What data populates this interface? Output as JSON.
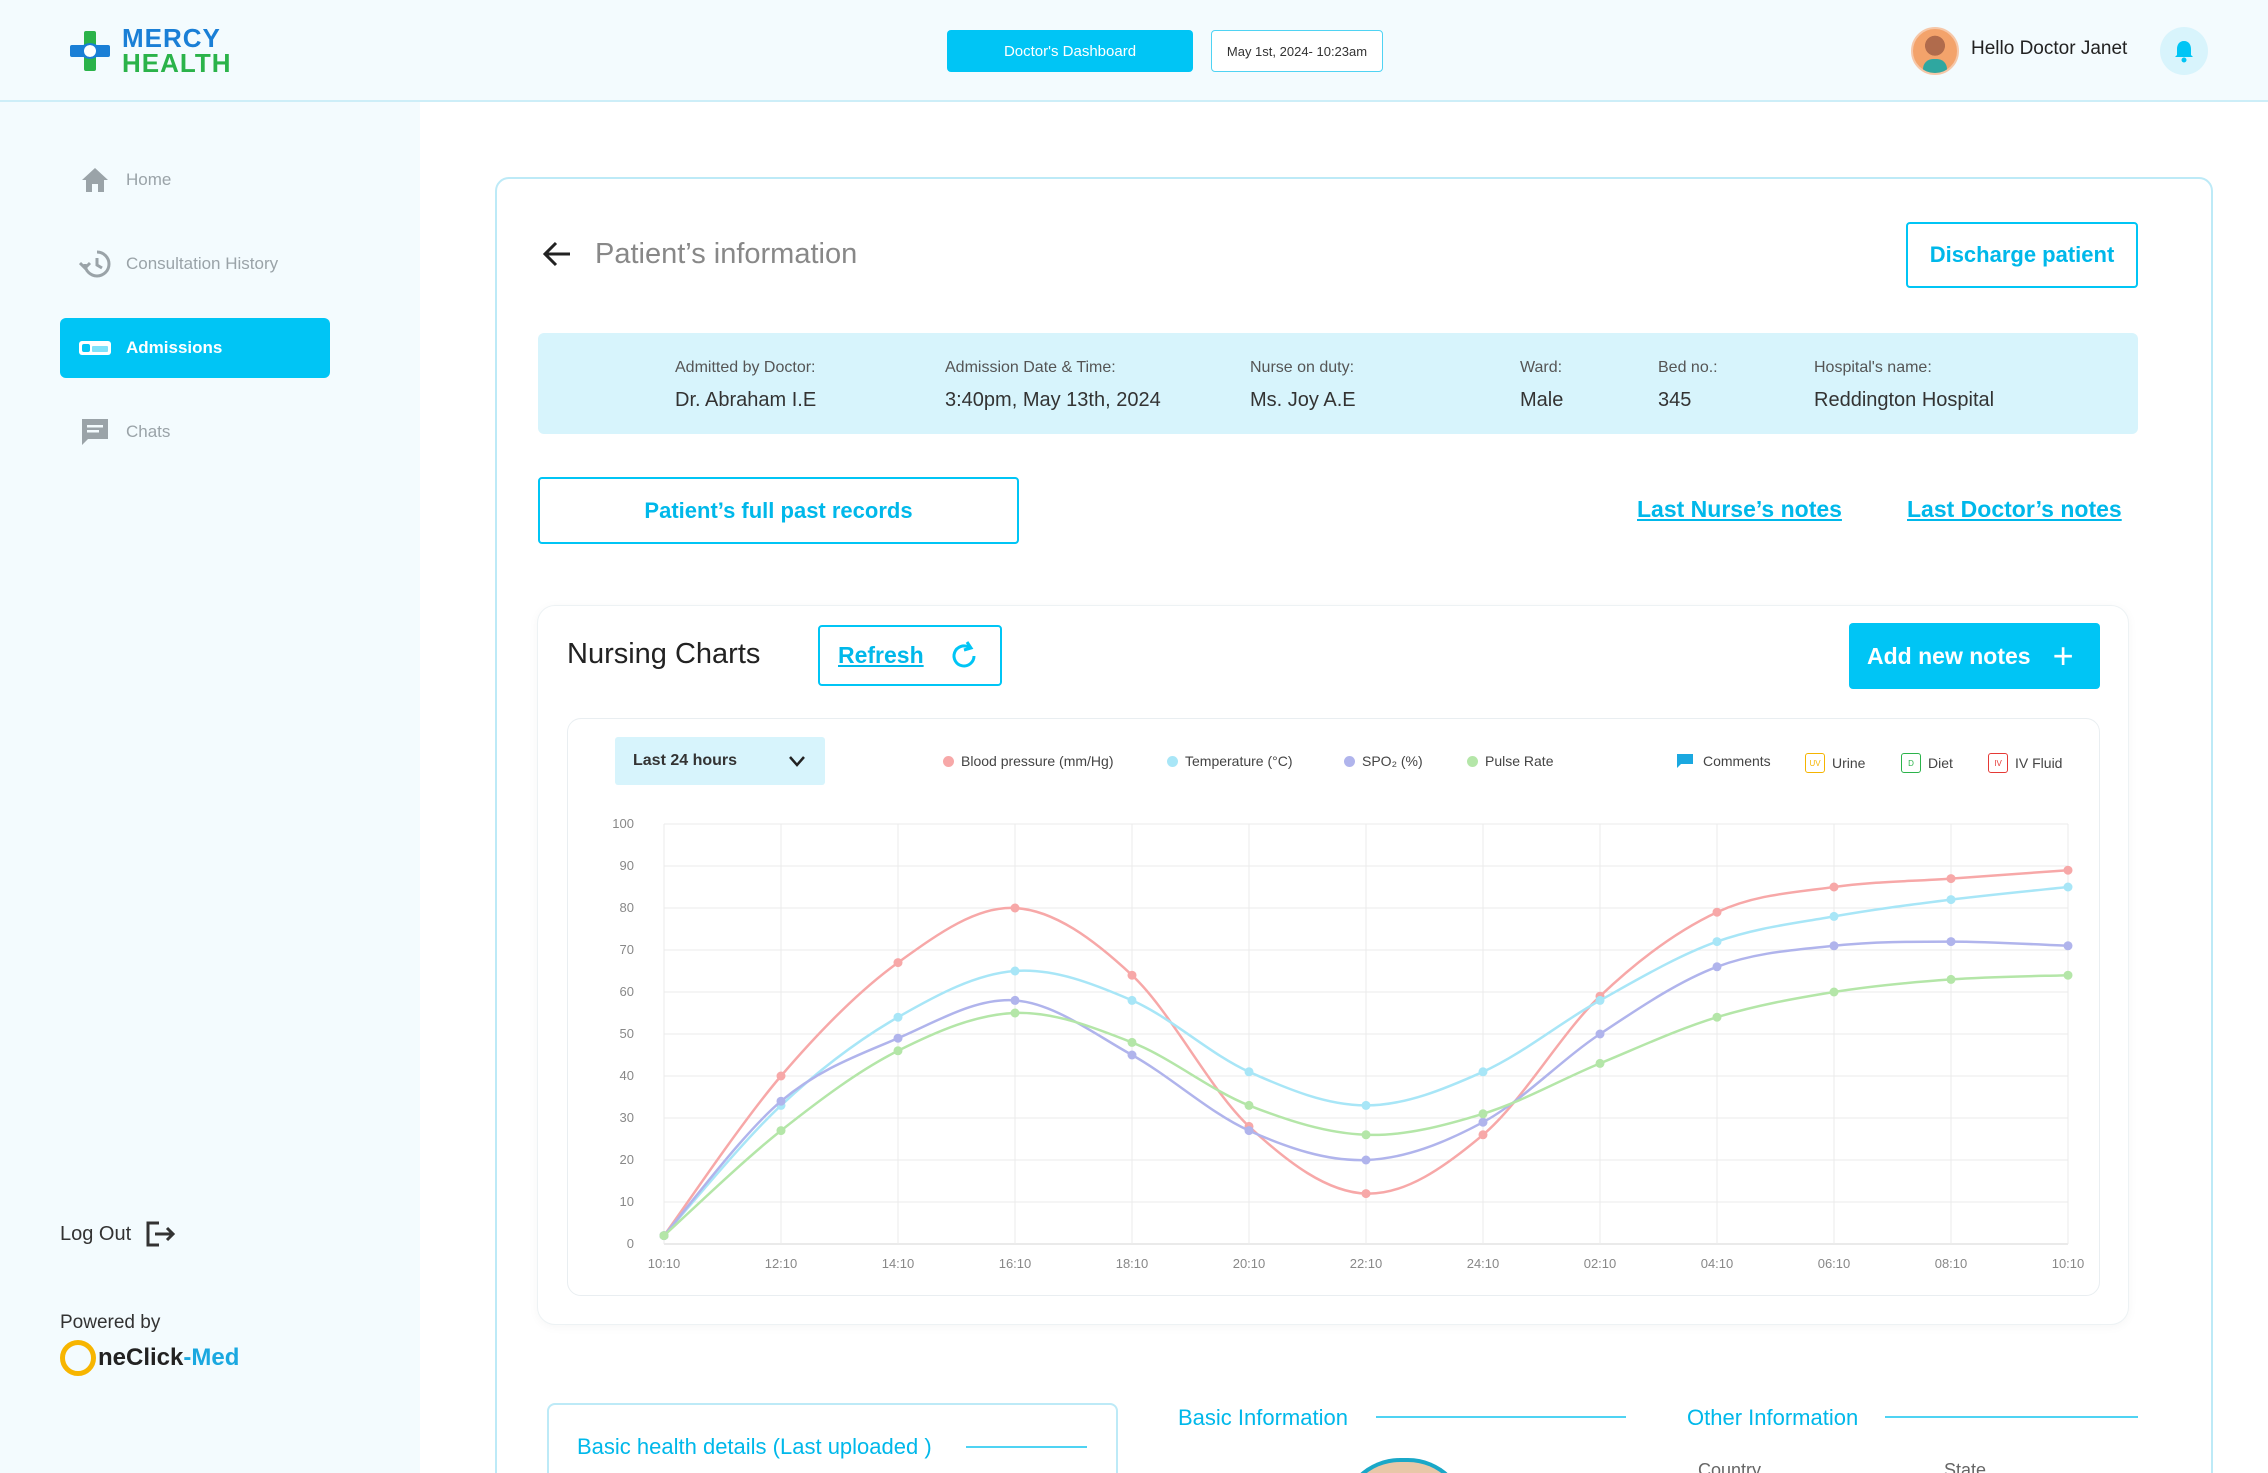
{
  "header": {
    "brand_line1": "MERCY",
    "brand_line2": "HEALTH",
    "dashboard_label": "Doctor's Dashboard",
    "datetime": "May 1st, 2024- 10:23am",
    "greeting": "Hello Doctor Janet"
  },
  "sidebar": {
    "items": [
      {
        "label": "Home",
        "icon": "home-icon",
        "active": false
      },
      {
        "label": "Consultation History",
        "icon": "history-icon",
        "active": false
      },
      {
        "label": "Admissions",
        "icon": "bed-icon",
        "active": true
      },
      {
        "label": "Chats",
        "icon": "chat-icon",
        "active": false
      }
    ],
    "logout_label": "Log Out",
    "powered_by": "Powered by",
    "powered_brand_a": "neClick",
    "powered_brand_b": "-Med"
  },
  "patient": {
    "title": "Patient’s information",
    "discharge_label": "Discharge patient",
    "info": [
      {
        "key": "Admitted by Doctor:",
        "value": "Dr. Abraham I.E"
      },
      {
        "key": "Admission Date & Time:",
        "value": "3:40pm, May 13th, 2024"
      },
      {
        "key": "Nurse on duty:",
        "value": "Ms. Joy A.E"
      },
      {
        "key": "Ward:",
        "value": "Male"
      },
      {
        "key": "Bed no.:",
        "value": "345"
      },
      {
        "key": "Hospital's name:",
        "value": "Reddington Hospital"
      }
    ],
    "past_records_label": "Patient’s full past records",
    "nurse_notes_label": "Last Nurse’s notes",
    "doctor_notes_label": "Last Doctor’s notes"
  },
  "nursing": {
    "title": "Nursing Charts",
    "refresh_label": "Refresh",
    "add_notes_label": "Add new notes",
    "range_label": "Last 24 hours",
    "legend_comments": "Comments",
    "legend_urine": "Urine",
    "legend_diet": "Diet",
    "legend_iv": "IV Fluid",
    "urine_code": "UV",
    "diet_code": "D",
    "iv_code": "IV"
  },
  "chart_data": {
    "type": "line",
    "x": [
      "10:10",
      "12:10",
      "14:10",
      "16:10",
      "18:10",
      "20:10",
      "22:10",
      "24:10",
      "02:10",
      "04:10",
      "06:10",
      "08:10",
      "10:10"
    ],
    "ylim": [
      0,
      100
    ],
    "yticks": [
      0,
      10,
      20,
      30,
      40,
      50,
      60,
      70,
      80,
      90,
      100
    ],
    "grid": true,
    "legend": "top",
    "series": [
      {
        "name": "Blood pressure (mm/Hg)",
        "color": "#f7a8a8",
        "values": [
          2,
          40,
          67,
          80,
          64,
          28,
          12,
          26,
          59,
          79,
          85,
          87,
          89
        ]
      },
      {
        "name": "Temperature (°C)",
        "color": "#a8e6f7",
        "values": [
          2,
          33,
          54,
          65,
          58,
          41,
          33,
          41,
          58,
          72,
          78,
          82,
          85
        ]
      },
      {
        "name": "SPO₂ (%)",
        "color": "#b0b4ec",
        "values": [
          2,
          34,
          49,
          58,
          45,
          27,
          20,
          29,
          50,
          66,
          71,
          72,
          71
        ]
      },
      {
        "name": "Pulse Rate",
        "color": "#b4e6a8",
        "values": [
          2,
          27,
          46,
          55,
          48,
          33,
          26,
          31,
          43,
          54,
          60,
          63,
          64
        ]
      }
    ]
  },
  "bottom": {
    "basic_health": "Basic health details (Last uploaded )",
    "basic_info": "Basic Information",
    "other_info": "Other Information",
    "country": "Country",
    "state": "State"
  }
}
